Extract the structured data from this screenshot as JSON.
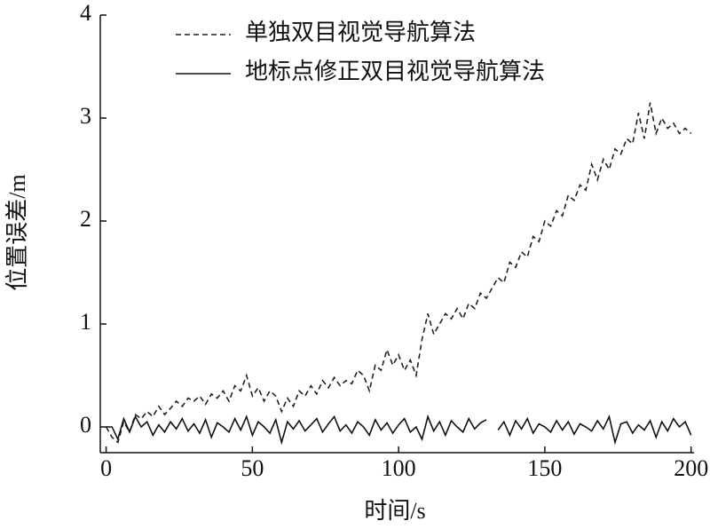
{
  "chart_data": {
    "type": "line",
    "xlabel": "时间/s",
    "ylabel": "位置误差/m",
    "x": [
      0,
      2,
      4,
      6,
      8,
      10,
      12,
      14,
      16,
      18,
      20,
      22,
      24,
      26,
      28,
      30,
      32,
      34,
      36,
      38,
      40,
      42,
      44,
      46,
      48,
      50,
      52,
      54,
      56,
      58,
      60,
      62,
      64,
      66,
      68,
      70,
      72,
      74,
      76,
      78,
      80,
      82,
      84,
      86,
      88,
      90,
      92,
      94,
      96,
      98,
      100,
      102,
      104,
      106,
      108,
      110,
      112,
      114,
      116,
      118,
      120,
      122,
      124,
      126,
      128,
      130,
      132,
      134,
      136,
      138,
      140,
      142,
      144,
      146,
      148,
      150,
      152,
      154,
      156,
      158,
      160,
      162,
      164,
      166,
      168,
      170,
      172,
      174,
      176,
      178,
      180,
      182,
      184,
      186,
      188,
      190,
      192,
      194,
      196,
      198,
      200
    ],
    "series": [
      {
        "name": "单独双目视觉导航算法",
        "color": "#222222",
        "dash": true,
        "values": [
          0.0,
          -0.1,
          -0.15,
          0.05,
          -0.05,
          0.12,
          0.08,
          0.15,
          0.1,
          0.2,
          0.12,
          0.18,
          0.25,
          0.2,
          0.28,
          0.25,
          0.3,
          0.22,
          0.32,
          0.28,
          0.35,
          0.25,
          0.4,
          0.35,
          0.5,
          0.3,
          0.38,
          0.25,
          0.35,
          0.3,
          0.15,
          0.28,
          0.2,
          0.35,
          0.3,
          0.4,
          0.32,
          0.45,
          0.38,
          0.48,
          0.4,
          0.45,
          0.42,
          0.55,
          0.5,
          0.35,
          0.6,
          0.55,
          0.75,
          0.6,
          0.7,
          0.55,
          0.65,
          0.5,
          0.85,
          1.1,
          0.9,
          1.0,
          1.1,
          1.05,
          1.15,
          1.05,
          1.2,
          1.15,
          1.3,
          1.25,
          1.35,
          1.45,
          1.4,
          1.6,
          1.55,
          1.7,
          1.65,
          1.85,
          1.8,
          2.0,
          1.95,
          2.1,
          2.05,
          2.25,
          2.2,
          2.35,
          2.3,
          2.55,
          2.4,
          2.6,
          2.5,
          2.7,
          2.65,
          2.8,
          2.75,
          3.05,
          2.8,
          3.15,
          2.85,
          3.0,
          2.9,
          2.95,
          2.85,
          2.9,
          2.85
        ]
      },
      {
        "name": "地标点修正双目视觉导航算法",
        "color": "#111111",
        "dash": false,
        "values": [
          0.0,
          0.0,
          -0.12,
          0.08,
          -0.05,
          0.1,
          0.0,
          0.05,
          -0.08,
          0.02,
          -0.05,
          0.05,
          -0.02,
          0.08,
          -0.04,
          0.03,
          -0.06,
          0.07,
          -0.1,
          0.04,
          0.0,
          -0.05,
          0.08,
          -0.03,
          0.1,
          -0.08,
          0.05,
          0.0,
          -0.06,
          0.07,
          -0.15,
          0.05,
          -0.02,
          0.06,
          -0.04,
          0.02,
          0.08,
          -0.05,
          0.03,
          0.1,
          -0.04,
          0.02,
          -0.06,
          0.05,
          0.0,
          -0.08,
          0.07,
          -0.03,
          0.04,
          -0.06,
          0.02,
          0.08,
          -0.05,
          0.0,
          -0.12,
          0.1,
          -0.04,
          0.05,
          -0.08,
          0.06,
          0.0,
          -0.05,
          0.08,
          -0.02,
          0.04,
          0.07,
          null,
          -0.03,
          0.05,
          -0.08,
          0.06,
          -0.02,
          0.08,
          -0.06,
          0.03,
          0.0,
          -0.05,
          0.06,
          -0.03,
          0.05,
          -0.07,
          0.03,
          0.0,
          -0.04,
          0.06,
          -0.02,
          0.1,
          -0.15,
          0.03,
          0.05,
          -0.06,
          0.02,
          -0.03,
          0.06,
          -0.1,
          0.05,
          -0.04,
          0.08,
          0.0,
          0.05,
          -0.08
        ]
      }
    ],
    "xlim": [
      -2,
      201
    ],
    "ylim": [
      -0.25,
      4
    ],
    "xticks": [
      0,
      50,
      100,
      150,
      200
    ],
    "yticks": [
      0,
      1,
      2,
      3,
      4
    ],
    "legend": "upper left",
    "grid": false
  }
}
